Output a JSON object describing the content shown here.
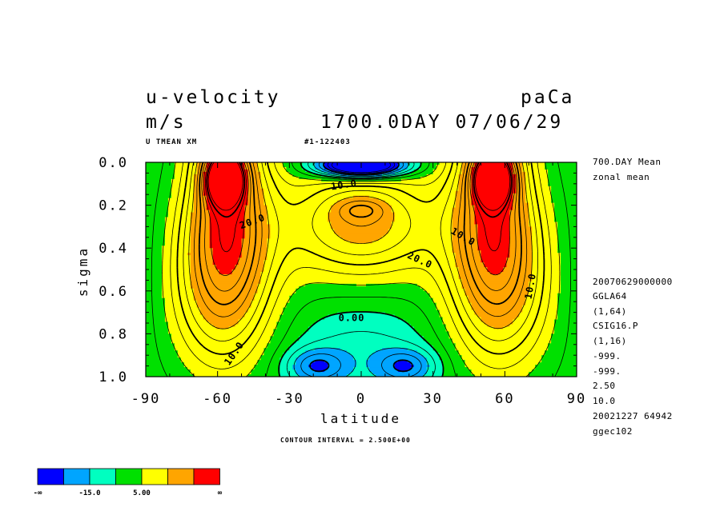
{
  "header": {
    "variable": "u-velocity",
    "units": "m/s",
    "experiment": "paCa",
    "time": "1700.0DAY 07/06/29",
    "subtitle_left": "U TMEAN XM",
    "subtitle_mid": "#1-122403"
  },
  "side_info": {
    "line1": "700.DAY Mean",
    "line2": "zonal mean",
    "lines": [
      "20070629000000",
      "GGLA64",
      "(1,64)",
      "CSIG16.P",
      "(1,16)",
      "-999.",
      "-999.",
      "2.50",
      "10.0",
      "20021227  64942",
      "ggec102"
    ]
  },
  "footer": {
    "contour_interval": "CONTOUR INTERVAL = 2.500E+00"
  },
  "colorbar": {
    "colors": [
      "#0000ff",
      "#00a5ff",
      "#00ffc0",
      "#00e000",
      "#ffff00",
      "#ffa500",
      "#ff0000"
    ],
    "labels": [
      "-∞",
      "-15.0",
      "5.00",
      "∞"
    ]
  },
  "chart_data": {
    "type": "contour",
    "title": "u-velocity",
    "units": "m/s",
    "xlabel": "latitude",
    "ylabel": "sigma",
    "x_ticks": [
      "-90",
      "-60",
      "-30",
      "0",
      "30",
      "60",
      "90"
    ],
    "y_ticks": [
      "0.0",
      "0.2",
      "0.4",
      "0.6",
      "0.8",
      "1.0"
    ],
    "xlim": [
      -90,
      90
    ],
    "ylim": [
      1.0,
      0.0
    ],
    "contour_interval": 2.5,
    "level_bounds": [
      -15,
      -10,
      -5,
      0,
      5,
      10,
      15,
      20,
      25,
      30
    ],
    "contour_labels": [
      "10.0",
      "20.0",
      "10.0",
      "20.0",
      "10.0",
      "0.00",
      "10.0"
    ],
    "features": [
      {
        "name": "southern jet max",
        "lat": -57,
        "sigma": 0.1,
        "value": 30
      },
      {
        "name": "northern jet max",
        "lat": 55,
        "sigma": 0.1,
        "value": 30
      },
      {
        "name": "equatorial easterlies",
        "lat": 0,
        "sigma": 0.03,
        "value": -15
      },
      {
        "name": "surface easterlies south",
        "lat": -18,
        "sigma": 0.95,
        "value": -5
      },
      {
        "name": "surface easterlies north",
        "lat": 18,
        "sigma": 0.95,
        "value": -5
      }
    ]
  }
}
